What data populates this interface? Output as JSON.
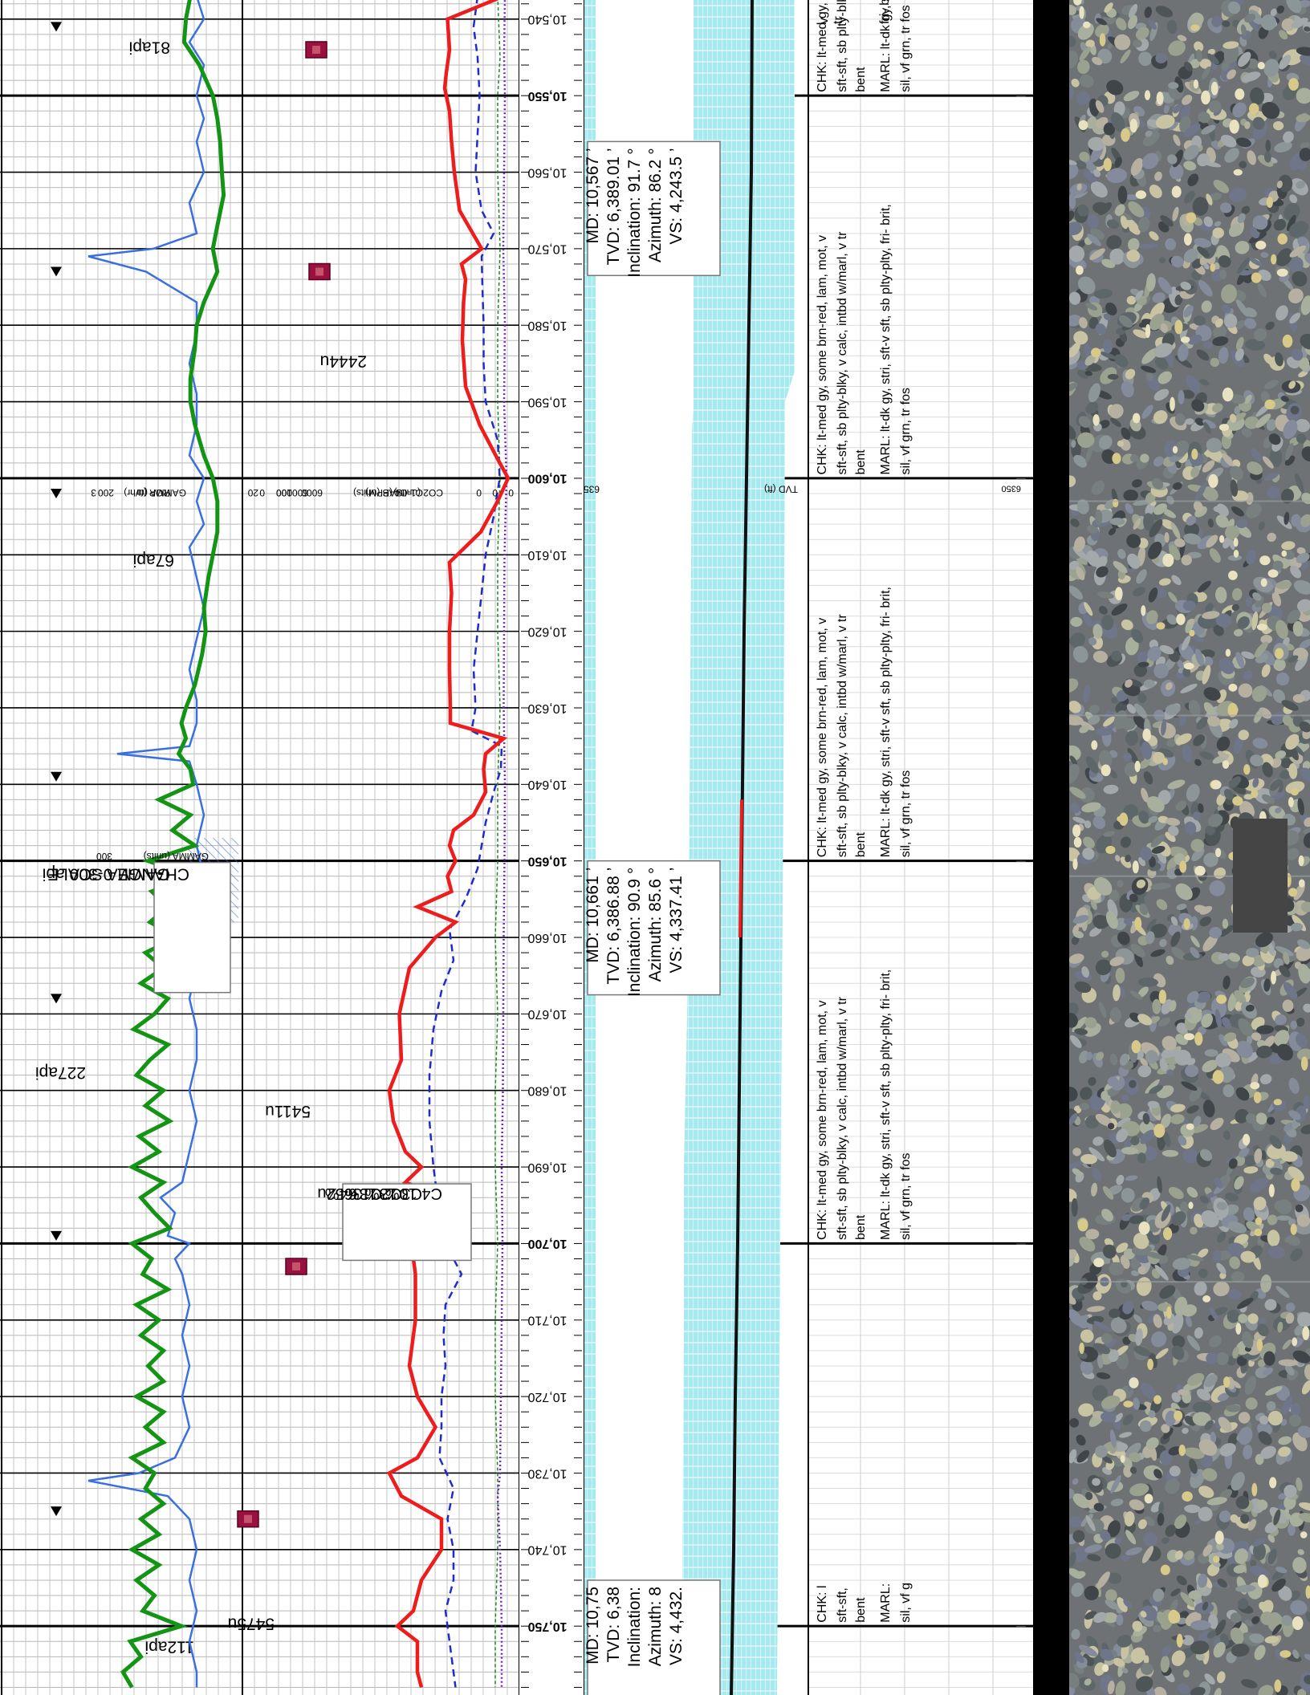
{
  "chart_data": {
    "type": "line",
    "title": "",
    "xlabel": "",
    "ylabel": "",
    "depth_range": [
      10537,
      10758
    ],
    "depth_labels": [
      "10,540",
      "10,550",
      "10,560",
      "10,570",
      "10,580",
      "10,590",
      "10,600",
      "10,610",
      "10,620",
      "10,630",
      "10,640",
      "10,650",
      "10,660",
      "10,670",
      "10,680",
      "10,690",
      "10,700",
      "10,710",
      "10,720",
      "10,730",
      "10,740",
      "10,750"
    ],
    "bold_depths": [
      10550,
      10600,
      10650,
      10700,
      10750
    ],
    "tvd_label": "6350",
    "tvd_axis": "TVD (ft)",
    "scales": {
      "rop": "ROP (ft/hr)",
      "gamma": "GAMMA (ur",
      "gamma_api": "GAMMA (units)",
      "gamma_max_old": "200",
      "gamma_max_new": "300",
      "rop_max": "3",
      "rop_min": "20",
      "gas": "GAS (units)",
      "c1c4": "C1-C4 (PPM)",
      "co2": "CO2 (units)",
      "gas_max": "6000",
      "c_max": "600000",
      "co2_max": "100",
      "zero_a": "0",
      "zero_b": "0",
      "zero_c": "0",
      "zero_d": "0"
    },
    "colors": {
      "gas": "#ee1c1c",
      "gamma": "#149414",
      "rop": "#3a6fe0",
      "c1c4": "#1e2ccc",
      "co2": "#1a8a1a",
      "purple": "#7722cc",
      "cuttings_band": "#a6e9ef",
      "well_path": "#111111"
    },
    "series": [
      {
        "name": "GAS (units)",
        "x": [
          10537,
          10540,
          10544,
          10547,
          10549,
          10552,
          10556,
          10560,
          10565,
          10570,
          10572,
          10574,
          10577,
          10582,
          10588,
          10593,
          10597,
          10600,
          10603,
          10607,
          10611,
          10615,
          10620,
          10625,
          10630,
          10632,
          10634,
          10636,
          10638,
          10641,
          10644,
          10646,
          10648,
          10650,
          10652,
          10654,
          10656,
          10658,
          10660,
          10664,
          10670,
          10676,
          10680,
          10684,
          10688,
          10690,
          10692,
          10694,
          10696,
          10698,
          10700,
          10702,
          10704,
          10710,
          10716,
          10720,
          10724,
          10728,
          10730,
          10733,
          10736,
          10740,
          10744,
          10748,
          10750,
          10752,
          10756,
          10758
        ],
        "values": [
          150,
          1550,
          1500,
          1580,
          1620,
          1500,
          1450,
          1380,
          1250,
          700,
          1200,
          1100,
          1150,
          1180,
          1100,
          750,
          350,
          40,
          300,
          720,
          1500,
          1450,
          1500,
          1500,
          1480,
          1480,
          150,
          600,
          650,
          600,
          900,
          1400,
          1500,
          1350,
          1550,
          1450,
          2300,
          1350,
          1850,
          2500,
          2750,
          2700,
          3000,
          2900,
          2600,
          2200,
          2600,
          1650,
          2600,
          2100,
          2300,
          2400,
          2350,
          2350,
          2500,
          2300,
          1850,
          2300,
          3000,
          2700,
          1700,
          1700,
          2200,
          2400,
          2800,
          2300,
          2300,
          2200
        ]
      },
      {
        "name": "GAMMA",
        "x": [
          10537,
          10540,
          10543,
          10546,
          10550,
          10553,
          10556,
          10560,
          10563,
          10567,
          10570,
          10573,
          10577,
          10580,
          10583,
          10587,
          10590,
          10593,
          10597,
          10600,
          10603,
          10607,
          10610,
          10613,
          10617,
          10620,
          10623,
          10627,
          10630,
          10632,
          10634,
          10636,
          10638,
          10640,
          10642,
          10644,
          10646,
          10648,
          10650,
          10652,
          10654,
          10656,
          10658,
          10660,
          10662,
          10664,
          10666,
          10668,
          10670,
          10672,
          10674,
          10676,
          10678,
          10680,
          10682,
          10684,
          10686,
          10688,
          10690,
          10692,
          10694,
          10696,
          10698,
          10700,
          10702,
          10704,
          10706,
          10708,
          10710,
          10712,
          10714,
          10716,
          10718,
          10720,
          10722,
          10724,
          10726,
          10728,
          10730,
          10732,
          10734,
          10736,
          10738,
          10740,
          10742,
          10744,
          10746,
          10748,
          10750,
          10752,
          10754,
          10756,
          10758
        ],
        "values": [
          165,
          170,
          172,
          155,
          140,
          135,
          132,
          130,
          128,
          135,
          140,
          135,
          150,
          158,
          160,
          165,
          165,
          160,
          150,
          140,
          135,
          135,
          140,
          145,
          150,
          148,
          152,
          160,
          170,
          175,
          170,
          178,
          165,
          162,
          200,
          165,
          185,
          160,
          212,
          165,
          208,
          190,
          210,
          180,
          215,
          195,
          220,
          190,
          205,
          228,
          190,
          210,
          225,
          195,
          215,
          188,
          222,
          200,
          230,
          195,
          220,
          205,
          188,
          230,
          208,
          218,
          190,
          225,
          200,
          220,
          195,
          212,
          195,
          225,
          195,
          215,
          195,
          230,
          205,
          215,
          195,
          220,
          200,
          230,
          200,
          225,
          205,
          218,
          175,
          232,
          220,
          240,
          230
        ]
      },
      {
        "name": "ROP",
        "x": [
          10537,
          10540,
          10543,
          10546,
          10550,
          10553,
          10556,
          10560,
          10564,
          10568,
          10570,
          10571,
          10573,
          10577,
          10581,
          10585,
          10589,
          10593,
          10597,
          10600,
          10603,
          10606,
          10609,
          10613,
          10617,
          10621,
          10625,
          10629,
          10632,
          10635,
          10636,
          10637,
          10640,
          10644,
          10648,
          10652,
          10656,
          10660,
          10664,
          10668,
          10672,
          10676,
          10680,
          10684,
          10688,
          10692,
          10694,
          10696,
          10699,
          10700,
          10702,
          10704,
          10708,
          10712,
          10716,
          10720,
          10724,
          10728,
          10730,
          10731,
          10733,
          10736,
          10740,
          10744,
          10748,
          10752,
          10756,
          10758
        ],
        "values": [
          5,
          4,
          6,
          4,
          5,
          4,
          5,
          4,
          6,
          5,
          11,
          20,
          12,
          5,
          5,
          6,
          5,
          5,
          6,
          4,
          5,
          4,
          6,
          5,
          4,
          5,
          6,
          5,
          5,
          6,
          16,
          6,
          5,
          4,
          5,
          4,
          5,
          4,
          5,
          6,
          5,
          5,
          6,
          5,
          6,
          7,
          10,
          8,
          9,
          6,
          8,
          7,
          6,
          7,
          6,
          7,
          6,
          8,
          13,
          20,
          9,
          6,
          5,
          6,
          5,
          6,
          5,
          5
        ]
      },
      {
        "name": "C1-C4 (PPM)",
        "x": [
          10537,
          10541,
          10545,
          10550,
          10555,
          10560,
          10565,
          10568,
          10571,
          10575,
          10580,
          10585,
          10590,
          10595,
          10600,
          10605,
          10610,
          10615,
          10620,
          10625,
          10630,
          10633,
          10635,
          10638,
          10641,
          10645,
          10648,
          10651,
          10655,
          10659,
          10663,
          10667,
          10672,
          10678,
          10684,
          10690,
          10694,
          10697,
          10700,
          10704,
          10708,
          10712,
          10716,
          10720,
          10724,
          10728,
          10732,
          10736,
          10740,
          10744,
          10748,
          10752,
          10756,
          10758
        ],
        "values": [
          80000,
          90000,
          80000,
          75000,
          80000,
          85000,
          70000,
          40000,
          70000,
          68000,
          65000,
          65000,
          60000,
          30000,
          25000,
          40000,
          60000,
          70000,
          80000,
          90000,
          85000,
          95000,
          20000,
          22000,
          40000,
          60000,
          70000,
          80000,
          110000,
          150000,
          140000,
          170000,
          190000,
          200000,
          200000,
          190000,
          180000,
          150000,
          160000,
          120000,
          160000,
          165000,
          160000,
          170000,
          170000,
          175000,
          140000,
          155000,
          140000,
          140000,
          160000,
          150000,
          140000,
          135000
        ]
      },
      {
        "name": "CO2 (units)",
        "x": [
          10537,
          10545,
          10550,
          10560,
          10570,
          10580,
          10590,
          10600,
          10610,
          10620,
          10630,
          10640,
          10650,
          10660,
          10670,
          10680,
          10690,
          10700,
          10710,
          10720,
          10730,
          10740,
          10750,
          10758
        ],
        "values": [
          5,
          4,
          5,
          5,
          4,
          5,
          5,
          4,
          5,
          5,
          4,
          5,
          5,
          6,
          5,
          6,
          6,
          5,
          6,
          6,
          5,
          5,
          6,
          6
        ]
      },
      {
        "name": "C1-C4 (dotted)",
        "x": [
          10537,
          10545,
          10550,
          10560,
          10570,
          10580,
          10590,
          10600,
          10610,
          10620,
          10630,
          10640,
          10650,
          10660,
          10670,
          10680,
          10690,
          10695,
          10700,
          10710,
          10720,
          10730,
          10733,
          10740,
          10750,
          10758
        ],
        "values": [
          12000,
          14000,
          12000,
          14000,
          16000,
          12000,
          14000,
          8000,
          13000,
          14000,
          15000,
          12000,
          13000,
          15000,
          16000,
          17000,
          20000,
          19000,
          18000,
          20000,
          22000,
          24000,
          30000,
          24000,
          20000,
          20000
        ]
      }
    ],
    "annotations": [
      {
        "text": "81api",
        "depth": 10543
      },
      {
        "text": "2444u",
        "depth": 10584
      },
      {
        "text": "67api",
        "depth": 10610
      },
      {
        "text": "5411u",
        "depth": 10682
      },
      {
        "text": "227api",
        "depth": 10677
      },
      {
        "text": "5475u",
        "depth": 10749
      },
      {
        "text": "112api",
        "depth": 10752
      }
    ],
    "gas_callout": [
      "3652u",
      "C1 64%",
      "C2 13%",
      "C3 13%",
      "C4 10%"
    ],
    "gamma_note": [
      "GAMMA SCALE",
      "CHANGE 0-300 api"
    ],
    "surveys": [
      {
        "lines": [
          "MD: 10,567 ’",
          "TVD: 6,389.01 ’",
          "Inclination: 91.7 °",
          "Azimuth: 86.2 °",
          "VS: 4,243.5 ’"
        ]
      },
      {
        "lines": [
          "MD: 10,661 ’",
          "TVD: 6,386.88 ’",
          "Inclination: 90.9 °",
          "Azimuth: 85.6 °",
          "VS: 4,337.41 ’"
        ]
      },
      {
        "lines": [
          "MD: 10,75",
          "TVD: 6,38",
          "Inclination:",
          "Azimuth: 8",
          "VS: 4,432."
        ]
      }
    ],
    "lithology_partial_top": [
      "v",
      "tr",
      "fri- brit,"
    ],
    "lithology": [
      {
        "chk": "CHK: lt-med gy, some brn-red, lam, mot, v",
        "l2": "sft-sft, sb plty-blky, v calc, intbd w/marl, v tr",
        "l3": "bent",
        "marl": "MARL: lt-dk gy, stri, sft-v sft, sb plty-plty, fri- brit,",
        "l5": "sil, vf grn, tr fos",
        "extra": ""
      },
      {
        "chk": "CHK: lt-med gy, some brn-red, lam, mot, v",
        "l2": "sft-sft, sb plty-blky, v calc, intbd w/marl, v tr",
        "l3": "bent",
        "marl": "MARL: lt-dk gy, stri, sft-v sft, sb plty-plty, fri- brit,",
        "l5": "sil, vf grn, tr fos",
        "extra": "6350"
      },
      {
        "chk": "CHK: lt-med gy, some brn-red, lam, mot, v",
        "l2": "sft-sft, sb plty-blky, v calc, intbd w/marl, v tr",
        "l3": "bent",
        "marl": "MARL: lt-dk gy, stri, sft-v sft, sb plty-plty, fri- brit,",
        "l5": "sil, vf grn, tr fos",
        "extra": ""
      },
      {
        "chk": "CHK: lt-med gy, some brn-red, lam, mot, v",
        "l2": "sft-sft, sb plty-blky, v calc, intbd w/marl, v tr",
        "l3": "bent",
        "marl": "MARL: lt-dk gy, stri, sft-v sft, sb plty-plty, fri- brit,",
        "l5": "sil, vf grn, tr fos",
        "extra": ""
      },
      {
        "chk": "CHK: l",
        "l2": "sft-sft,",
        "l3": "bent",
        "marl": "MARL:",
        "l5": "sil, vf g",
        "extra": ""
      }
    ]
  }
}
